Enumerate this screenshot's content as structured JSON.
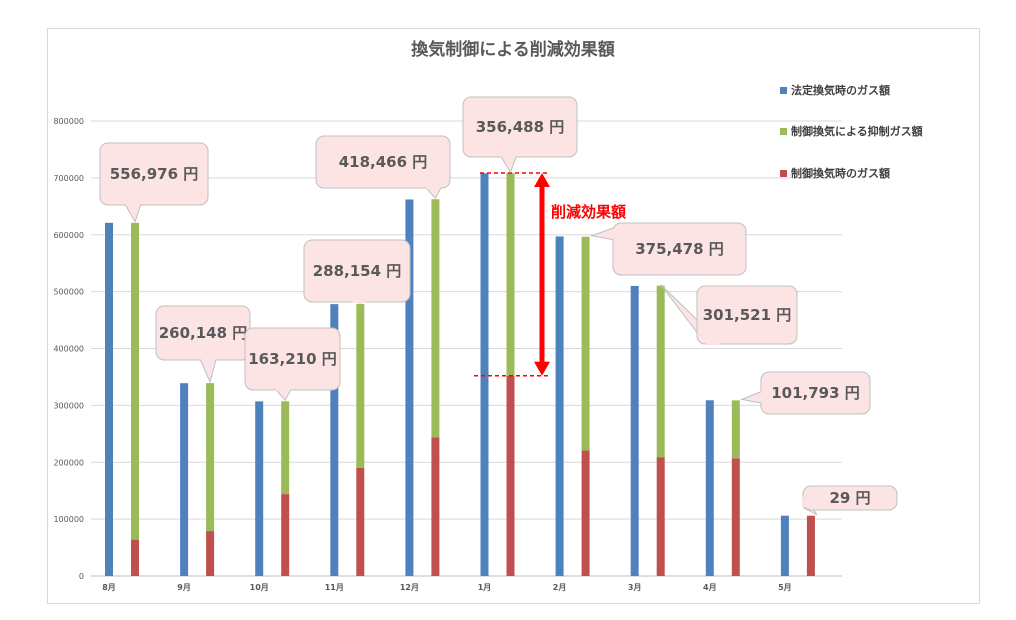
{
  "chart_data": {
    "type": "bar",
    "title": "換気制御による削減効果額",
    "categories": [
      "8月",
      "9月",
      "10月",
      "11月",
      "12月",
      "1月",
      "2月",
      "3月",
      "4月",
      "5月"
    ],
    "series": [
      {
        "name": "法定換気時のガス額",
        "color": "#4f81bd",
        "values": [
          621000,
          339000,
          307000,
          478000,
          662000,
          708000,
          597000,
          510000,
          309000,
          106000
        ]
      },
      {
        "name": "制御換気による抑制ガス額",
        "color": "#9bbb59",
        "values": [
          556976,
          260148,
          163210,
          288154,
          418466,
          356488,
          375478,
          301521,
          101793,
          29
        ]
      },
      {
        "name": "制御換気時のガス額",
        "color": "#c0504d",
        "values": [
          64000,
          79000,
          144000,
          190000,
          244000,
          352000,
          221000,
          209000,
          207000,
          106000
        ]
      }
    ],
    "stacked_series": [
      2,
      1
    ],
    "yticks": [
      "0",
      "100000",
      "200000",
      "300000",
      "400000",
      "500000",
      "600000",
      "700000",
      "800000"
    ],
    "ylim": [
      0,
      800000
    ],
    "grid": true,
    "legend": "right",
    "callouts": [
      "556,976 円",
      "260,148 円",
      "163,210 円",
      "288,154 円",
      "418,466 円",
      "356,488 円",
      "375,478 円",
      "301,521 円",
      "101,793 円",
      "29 円"
    ],
    "arrow_annotation": "削減効果額"
  }
}
